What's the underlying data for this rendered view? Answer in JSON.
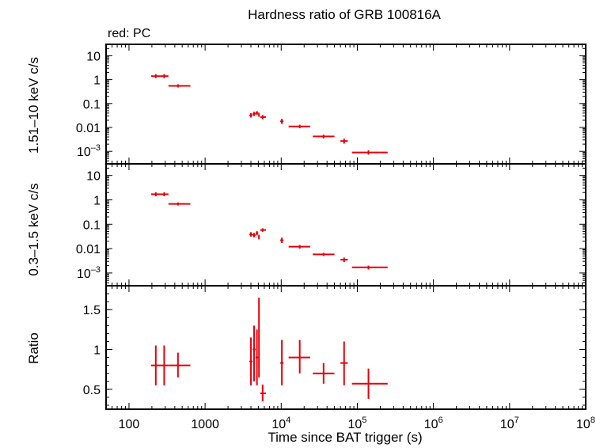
{
  "chart_data": {
    "type": "scatter",
    "title": "Hardness ratio of GRB 100816A",
    "annotation": "red: PC",
    "xlabel": "Time since BAT trigger (s)",
    "x_scale": "log",
    "xlim": [
      50,
      100000000
    ],
    "x_ticks": [
      {
        "value": 100,
        "label": "100"
      },
      {
        "value": 1000,
        "label": "1000"
      },
      {
        "value": 10000,
        "label": "10",
        "exp": "4"
      },
      {
        "value": 100000,
        "label": "10",
        "exp": "5"
      },
      {
        "value": 1000000,
        "label": "10",
        "exp": "6"
      },
      {
        "value": 10000000,
        "label": "10",
        "exp": "7"
      },
      {
        "value": 100000000,
        "label": "10",
        "exp": "8"
      }
    ],
    "color": "#e8000b",
    "panels": [
      {
        "ylabel": "1.51–10 keV c/s",
        "y_scale": "log",
        "ylim": [
          0.0003,
          30
        ],
        "y_ticks": [
          {
            "value": 10,
            "label": "10"
          },
          {
            "value": 1,
            "label": "1"
          },
          {
            "value": 0.1,
            "label": "0.1"
          },
          {
            "value": 0.01,
            "label": "0.01"
          },
          {
            "value": 0.001,
            "label": "10",
            "exp": "–3"
          }
        ],
        "points": [
          {
            "x": 225,
            "xlo": 195,
            "xhi": 255,
            "y": 1.4,
            "ylo": 1.15,
            "yhi": 1.7
          },
          {
            "x": 290,
            "xlo": 255,
            "xhi": 330,
            "y": 1.4,
            "ylo": 1.15,
            "yhi": 1.7
          },
          {
            "x": 440,
            "xlo": 330,
            "xhi": 640,
            "y": 0.55,
            "ylo": 0.47,
            "yhi": 0.64
          },
          {
            "x": 4000,
            "xlo": 3800,
            "xhi": 4200,
            "y": 0.032,
            "ylo": 0.026,
            "yhi": 0.04
          },
          {
            "x": 4400,
            "xlo": 4200,
            "xhi": 4600,
            "y": 0.037,
            "ylo": 0.03,
            "yhi": 0.045
          },
          {
            "x": 4800,
            "xlo": 4600,
            "xhi": 5000,
            "y": 0.04,
            "ylo": 0.033,
            "yhi": 0.048
          },
          {
            "x": 5100,
            "xlo": 5000,
            "xhi": 5200,
            "y": 0.034,
            "ylo": 0.028,
            "yhi": 0.041
          },
          {
            "x": 5700,
            "xlo": 5300,
            "xhi": 6300,
            "y": 0.027,
            "ylo": 0.022,
            "yhi": 0.033
          },
          {
            "x": 10200,
            "xlo": 9700,
            "xhi": 10700,
            "y": 0.018,
            "ylo": 0.014,
            "yhi": 0.023
          },
          {
            "x": 17500,
            "xlo": 12500,
            "xhi": 24000,
            "y": 0.011,
            "ylo": 0.0093,
            "yhi": 0.013
          },
          {
            "x": 36000,
            "xlo": 26000,
            "xhi": 50000,
            "y": 0.0042,
            "ylo": 0.0035,
            "yhi": 0.005
          },
          {
            "x": 67000,
            "xlo": 60000,
            "xhi": 75000,
            "y": 0.0027,
            "ylo": 0.0021,
            "yhi": 0.0034
          },
          {
            "x": 140000,
            "xlo": 85000,
            "xhi": 250000,
            "y": 0.0009,
            "ylo": 0.00073,
            "yhi": 0.0011
          }
        ]
      },
      {
        "ylabel": "0.3–1.5 keV c/s",
        "y_scale": "log",
        "ylim": [
          0.0003,
          30
        ],
        "y_ticks": [
          {
            "value": 10,
            "label": "10"
          },
          {
            "value": 1,
            "label": "1"
          },
          {
            "value": 0.1,
            "label": "0.1"
          },
          {
            "value": 0.01,
            "label": "0.01"
          },
          {
            "value": 0.001,
            "label": "10",
            "exp": "–3"
          }
        ],
        "points": [
          {
            "x": 225,
            "xlo": 195,
            "xhi": 255,
            "y": 1.7,
            "ylo": 1.4,
            "yhi": 2.05
          },
          {
            "x": 290,
            "xlo": 255,
            "xhi": 330,
            "y": 1.7,
            "ylo": 1.4,
            "yhi": 2.05
          },
          {
            "x": 440,
            "xlo": 330,
            "xhi": 640,
            "y": 0.68,
            "ylo": 0.59,
            "yhi": 0.78
          },
          {
            "x": 4000,
            "xlo": 3800,
            "xhi": 4200,
            "y": 0.038,
            "ylo": 0.031,
            "yhi": 0.047
          },
          {
            "x": 4400,
            "xlo": 4200,
            "xhi": 4600,
            "y": 0.036,
            "ylo": 0.029,
            "yhi": 0.044
          },
          {
            "x": 4800,
            "xlo": 4600,
            "xhi": 5000,
            "y": 0.043,
            "ylo": 0.035,
            "yhi": 0.052
          },
          {
            "x": 5100,
            "xlo": 5000,
            "xhi": 5200,
            "y": 0.03,
            "ylo": 0.024,
            "yhi": 0.037
          },
          {
            "x": 5700,
            "xlo": 5300,
            "xhi": 6300,
            "y": 0.058,
            "ylo": 0.049,
            "yhi": 0.068
          },
          {
            "x": 10200,
            "xlo": 9700,
            "xhi": 10700,
            "y": 0.022,
            "ylo": 0.017,
            "yhi": 0.028
          },
          {
            "x": 17500,
            "xlo": 12500,
            "xhi": 24000,
            "y": 0.012,
            "ylo": 0.01,
            "yhi": 0.014
          },
          {
            "x": 36000,
            "xlo": 26000,
            "xhi": 50000,
            "y": 0.0058,
            "ylo": 0.005,
            "yhi": 0.0067
          },
          {
            "x": 67000,
            "xlo": 60000,
            "xhi": 75000,
            "y": 0.0035,
            "ylo": 0.0028,
            "yhi": 0.0043
          },
          {
            "x": 140000,
            "xlo": 85000,
            "xhi": 250000,
            "y": 0.0017,
            "ylo": 0.0014,
            "yhi": 0.002
          }
        ]
      },
      {
        "ylabel": "Ratio",
        "y_scale": "linear",
        "ylim": [
          0.25,
          1.8
        ],
        "y_ticks": [
          {
            "value": 1.5,
            "label": "1.5"
          },
          {
            "value": 1,
            "label": "1"
          },
          {
            "value": 0.5,
            "label": "0.5"
          }
        ],
        "points": [
          {
            "x": 225,
            "xlo": 195,
            "xhi": 255,
            "y": 0.8,
            "ylo": 0.55,
            "yhi": 1.05
          },
          {
            "x": 290,
            "xlo": 255,
            "xhi": 330,
            "y": 0.8,
            "ylo": 0.55,
            "yhi": 1.05
          },
          {
            "x": 440,
            "xlo": 330,
            "xhi": 640,
            "y": 0.8,
            "ylo": 0.65,
            "yhi": 0.96
          },
          {
            "x": 4000,
            "xlo": 3800,
            "xhi": 4200,
            "y": 0.85,
            "ylo": 0.55,
            "yhi": 1.15
          },
          {
            "x": 4400,
            "xlo": 4200,
            "xhi": 4600,
            "y": 1.0,
            "ylo": 0.6,
            "yhi": 1.3
          },
          {
            "x": 4800,
            "xlo": 4600,
            "xhi": 5000,
            "y": 0.9,
            "ylo": 0.55,
            "yhi": 1.25
          },
          {
            "x": 5100,
            "xlo": 5000,
            "xhi": 5200,
            "y": 1.15,
            "ylo": 0.65,
            "yhi": 1.65
          },
          {
            "x": 5700,
            "xlo": 5300,
            "xhi": 6300,
            "y": 0.45,
            "ylo": 0.35,
            "yhi": 0.56
          },
          {
            "x": 10200,
            "xlo": 9700,
            "xhi": 10700,
            "y": 0.83,
            "ylo": 0.55,
            "yhi": 1.12
          },
          {
            "x": 17500,
            "xlo": 12500,
            "xhi": 24000,
            "y": 0.9,
            "ylo": 0.7,
            "yhi": 1.12
          },
          {
            "x": 36000,
            "xlo": 26000,
            "xhi": 50000,
            "y": 0.7,
            "ylo": 0.57,
            "yhi": 0.83
          },
          {
            "x": 67000,
            "xlo": 60000,
            "xhi": 75000,
            "y": 0.83,
            "ylo": 0.55,
            "yhi": 1.1
          },
          {
            "x": 140000,
            "xlo": 85000,
            "xhi": 250000,
            "y": 0.57,
            "ylo": 0.38,
            "yhi": 0.76
          }
        ]
      }
    ]
  }
}
